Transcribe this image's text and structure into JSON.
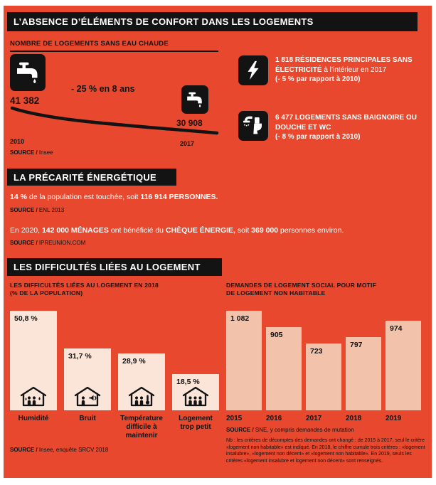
{
  "common": {
    "source_label": "SOURCE /"
  },
  "headers": {
    "h1": "L’ABSENCE D’ÉLÉMENTS DE CONFORT DANS LES LOGEMENTS",
    "h2": "LA PRÉCARITÉ ÉNERGÉTIQUE",
    "h3": "LES DIFFICULTÉS LIÉES AU LOGEMENT"
  },
  "facts": {
    "electricity": {
      "bold": "1 818 RÉSIDENCES PRINCIPALES SANS ÉLECTRICITÉ",
      "regular": "à l’intérieur en 2017",
      "note": "(- 5 % par rapport à 2010)"
    },
    "bathroom": {
      "bold": "6 477 LOGEMENTS SANS BAIGNOIRE OU DOUCHE ET WC",
      "note": "(- 8 % par rapport à 2010)"
    }
  },
  "precarite": {
    "line1": {
      "b1": "14 %",
      "r1": "de la population est touchée, soit",
      "b2": "116 914 PERSONNES."
    },
    "source1": "ENL 2013",
    "line2": {
      "r1": "En 2020,",
      "b1": "142 000 MÉNAGES",
      "r2": "ont bénéficié du",
      "b2": "CHÈQUE ÉNERGIE,",
      "r3": "soit",
      "b3": "369 000",
      "r4": "personnes environ."
    },
    "source2": "IPREUNION.COM"
  },
  "chart_data": [
    {
      "id": "eau_chaude",
      "type": "line",
      "title": "NOMBRE DE LOGEMENTS SANS EAU CHAUDE",
      "x": [
        "2010",
        "2017"
      ],
      "values": [
        41382,
        30908
      ],
      "value_labels": [
        "41 382",
        "30 908"
      ],
      "annotation": "- 25 % en 8 ans",
      "source": "Insee"
    },
    {
      "id": "difficulties",
      "type": "bar",
      "title": "LES DIFFICULTÉS LIÉES AU LOGEMENT EN 2018",
      "subtitle": "(% DE LA POPULATION)",
      "categories": [
        "Humidité",
        "Bruit",
        "Température difficile à maintenir",
        "Logement trop petit"
      ],
      "values": [
        50.8,
        31.7,
        28.9,
        18.5
      ],
      "value_labels": [
        "50,8 %",
        "31,7 %",
        "28,9 %",
        "18,5 %"
      ],
      "ylim": [
        0,
        50.8
      ],
      "bar_color": "#fbe4d8",
      "source": "Insee, enquête SRCV 2018"
    },
    {
      "id": "demandes",
      "type": "bar",
      "title": "DEMANDES DE LOGEMENT SOCIAL POUR MOTIF DE LOGEMENT NON HABITABLE",
      "title_lines": [
        "DEMANDES DE LOGEMENT SOCIAL POUR MOTIF",
        "DE LOGEMENT NON HABITABLE"
      ],
      "categories": [
        "2015",
        "2016",
        "2017",
        "2018",
        "2019"
      ],
      "values": [
        1082,
        905,
        723,
        797,
        974
      ],
      "value_labels": [
        "1 082",
        "905",
        "723",
        "797",
        "974"
      ],
      "ylim": [
        0,
        1100
      ],
      "bar_color": "#f2c2ab",
      "source": "SNE, y compris demandes de mutation",
      "note": "Nb : les critères de décomptes des demandes ont changé : de 2015 à 2017, seul le critère «logement non habitable» est indiqué. En 2018, le chiffre cumule trois critères : «logement insalubre», «logement non décent» et «logement non habitable». En 2019, seuls les critères «logement insalubre et logement non décent» sont renseignés."
    }
  ],
  "colors": {
    "background": "#e8482d",
    "panel_black": "#131313",
    "bar_cream": "#fbe4d8",
    "bar_salmon": "#f2c2ab"
  }
}
